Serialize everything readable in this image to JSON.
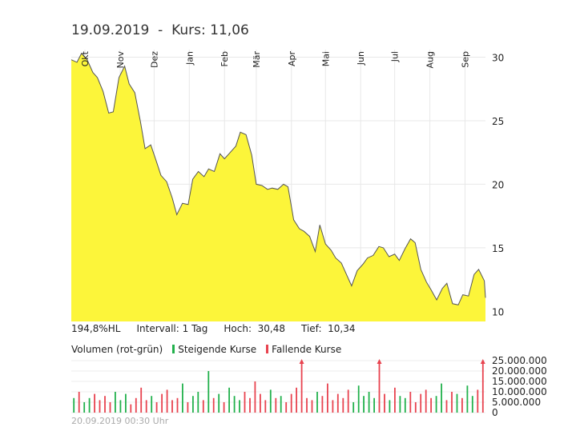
{
  "header": {
    "date": "19.09.2019",
    "separator": "-",
    "price_label": "Kurs: 11,06"
  },
  "stats": {
    "hl": "194,8%HL",
    "interval": "Intervall: 1 Tag",
    "high": "Hoch:  30,48",
    "low": "Tief:  10,34"
  },
  "legend": {
    "title": "Volumen (rot-grün)",
    "rising": "Steigende Kurse",
    "falling": "Fallende Kurse",
    "rising_color": "#22b14c",
    "falling_color": "#e8434f"
  },
  "footer": {
    "timestamp": "20.09.2019 00:30 Uhr"
  },
  "chart_data": [
    {
      "type": "area",
      "fill_color": "#fcf53a",
      "line_color": "#555555",
      "months": [
        "Okt",
        "Nov",
        "Dez",
        "Jan",
        "Feb",
        "Mär",
        "Apr",
        "Mai",
        "Jun",
        "Jul",
        "Aug",
        "Sep"
      ],
      "y_ticks": [
        10,
        15,
        20,
        25,
        30
      ],
      "ylim": [
        9.2,
        30.6
      ],
      "grid": true,
      "y_axis_position": "right",
      "x": [
        "2018-09-19",
        "2018-09-24",
        "2018-09-28",
        "2018-10-03",
        "2018-10-08",
        "2018-10-12",
        "2018-10-17",
        "2018-10-22",
        "2018-10-26",
        "2018-10-31",
        "2018-11-05",
        "2018-11-09",
        "2018-11-14",
        "2018-11-19",
        "2018-11-23",
        "2018-11-28",
        "2018-12-03",
        "2018-12-07",
        "2018-12-12",
        "2018-12-17",
        "2018-12-21",
        "2018-12-26",
        "2018-12-31",
        "2019-01-04",
        "2019-01-09",
        "2019-01-14",
        "2019-01-18",
        "2019-01-23",
        "2019-01-28",
        "2019-02-01",
        "2019-02-06",
        "2019-02-11",
        "2019-02-15",
        "2019-02-20",
        "2019-02-25",
        "2019-03-01",
        "2019-03-06",
        "2019-03-11",
        "2019-03-15",
        "2019-03-20",
        "2019-03-25",
        "2019-03-29",
        "2019-04-03",
        "2019-04-08",
        "2019-04-12",
        "2019-04-17",
        "2019-04-22",
        "2019-04-26",
        "2019-05-01",
        "2019-05-06",
        "2019-05-10",
        "2019-05-15",
        "2019-05-20",
        "2019-05-24",
        "2019-05-29",
        "2019-06-03",
        "2019-06-07",
        "2019-06-12",
        "2019-06-17",
        "2019-06-21",
        "2019-06-26",
        "2019-07-01",
        "2019-07-05",
        "2019-07-10",
        "2019-07-15",
        "2019-07-19",
        "2019-07-24",
        "2019-07-29",
        "2019-08-02",
        "2019-08-07",
        "2019-08-12",
        "2019-08-16",
        "2019-08-21",
        "2019-08-26",
        "2019-08-30",
        "2019-09-04",
        "2019-09-09",
        "2019-09-13",
        "2019-09-18",
        "2019-09-19"
      ],
      "close": [
        29.8,
        29.6,
        30.3,
        29.8,
        28.8,
        28.4,
        27.3,
        25.6,
        25.7,
        28.4,
        29.3,
        27.9,
        27.2,
        24.9,
        22.8,
        23.1,
        21.8,
        20.7,
        20.2,
        18.9,
        17.6,
        18.5,
        18.4,
        20.4,
        21.0,
        20.6,
        21.2,
        21.0,
        22.4,
        22.0,
        22.5,
        23.0,
        24.1,
        23.9,
        22.3,
        20.0,
        19.9,
        19.6,
        19.7,
        19.6,
        20.0,
        19.8,
        17.2,
        16.5,
        16.3,
        15.9,
        14.7,
        16.8,
        15.3,
        14.8,
        14.2,
        13.8,
        12.8,
        12.0,
        13.2,
        13.7,
        14.2,
        14.4,
        15.1,
        15.0,
        14.3,
        14.5,
        14.0,
        14.9,
        15.7,
        15.4,
        13.3,
        12.3,
        11.7,
        10.9,
        11.8,
        12.2,
        10.6,
        10.5,
        11.3,
        11.2,
        12.9,
        13.3,
        12.4,
        11.06
      ]
    },
    {
      "type": "bar",
      "series": "Volumen",
      "y_ticks": [
        "0",
        "5.000.000",
        "10.000.000",
        "15.000.000",
        "20.000.000",
        "25.000.000"
      ],
      "ylim": [
        0,
        25000000
      ],
      "values": [
        7000000,
        10000000,
        5000000,
        7000000,
        9000000,
        6000000,
        8000000,
        5000000,
        10000000,
        6000000,
        9000000,
        4000000,
        7000000,
        12000000,
        6000000,
        8000000,
        5000000,
        9000000,
        11000000,
        6000000,
        7000000,
        14000000,
        5000000,
        8000000,
        10000000,
        6000000,
        20000000,
        7000000,
        9000000,
        5000000,
        12000000,
        8000000,
        6000000,
        10000000,
        7000000,
        15000000,
        9000000,
        6000000,
        11000000,
        7000000,
        8000000,
        5000000,
        9000000,
        12000000,
        25000000,
        7000000,
        6000000,
        10000000,
        8000000,
        14000000,
        6000000,
        9000000,
        7000000,
        11000000,
        5000000,
        13000000,
        8000000,
        10000000,
        7000000,
        25000000,
        9000000,
        6000000,
        12000000,
        8000000,
        7000000,
        10000000,
        5000000,
        9000000,
        11000000,
        7000000,
        8000000,
        14000000,
        6000000,
        10000000,
        9000000,
        7000000,
        13000000,
        8000000,
        11000000,
        25000000
      ],
      "rising": [
        true,
        false,
        true,
        true,
        false,
        false,
        false,
        false,
        true,
        true,
        true,
        false,
        false,
        false,
        false,
        true,
        false,
        false,
        false,
        false,
        false,
        true,
        false,
        true,
        true,
        false,
        true,
        false,
        true,
        false,
        true,
        true,
        true,
        false,
        false,
        false,
        false,
        false,
        true,
        false,
        true,
        false,
        false,
        false,
        false,
        false,
        false,
        true,
        false,
        false,
        false,
        false,
        false,
        false,
        true,
        true,
        true,
        true,
        true,
        false,
        false,
        true,
        false,
        true,
        true,
        false,
        false,
        false,
        false,
        false,
        true,
        true,
        false,
        false,
        true,
        false,
        true,
        true,
        false,
        false
      ]
    }
  ]
}
